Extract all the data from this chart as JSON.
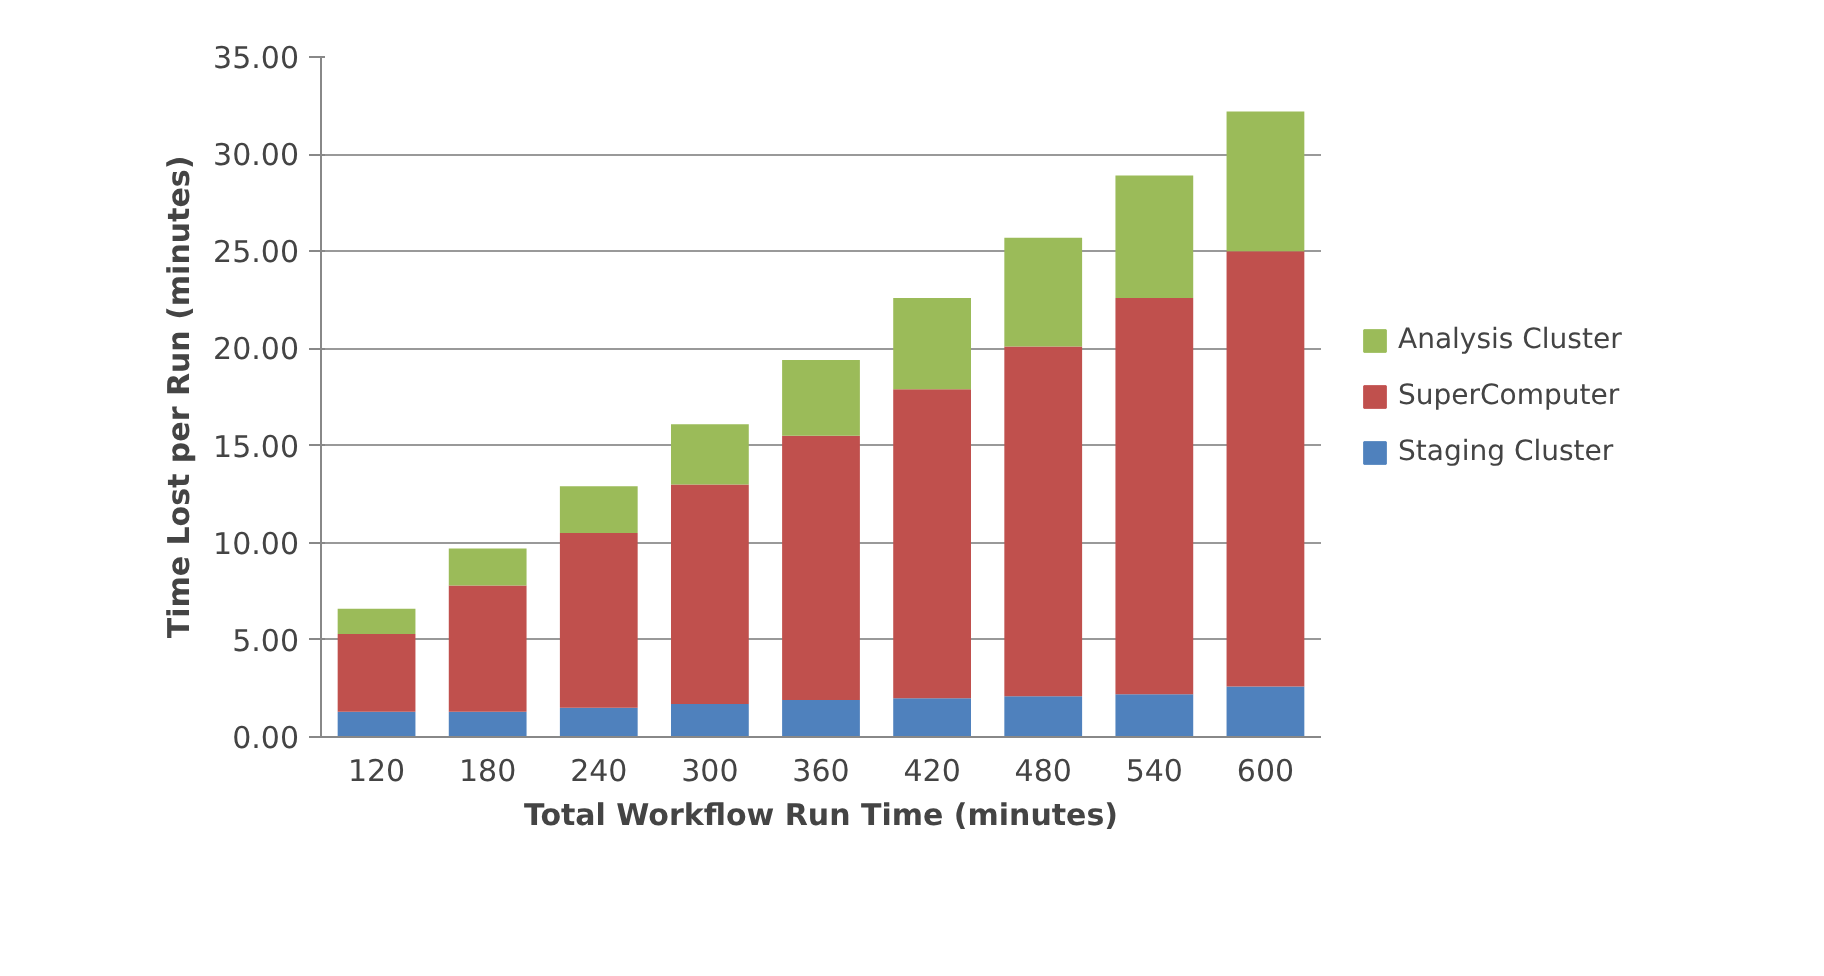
{
  "chart_data": {
    "type": "bar",
    "stacked": true,
    "xlabel": "Total Workflow Run Time (minutes)",
    "ylabel": "Time Lost per Run (minutes)",
    "categories": [
      "120",
      "180",
      "240",
      "300",
      "360",
      "420",
      "480",
      "540",
      "600"
    ],
    "series": [
      {
        "name": "Staging Cluster",
        "color": "#4f81bd",
        "values": [
          1.3,
          1.3,
          1.5,
          1.7,
          1.9,
          2.0,
          2.1,
          2.2,
          2.6
        ]
      },
      {
        "name": "SuperComputer",
        "color": "#c0504d",
        "values": [
          4.0,
          6.5,
          9.0,
          11.3,
          13.6,
          15.9,
          18.0,
          20.4,
          22.4
        ]
      },
      {
        "name": "Analysis Cluster",
        "color": "#9bbb59",
        "values": [
          1.3,
          1.9,
          2.4,
          3.1,
          3.9,
          4.7,
          5.6,
          6.3,
          7.2
        ]
      }
    ],
    "ylim": [
      0,
      35
    ],
    "yticks": [
      {
        "value": 0,
        "label": "0.00"
      },
      {
        "value": 5,
        "label": "5.00"
      },
      {
        "value": 10,
        "label": "10.00"
      },
      {
        "value": 15,
        "label": "15.00"
      },
      {
        "value": 20,
        "label": "20.00"
      },
      {
        "value": 25,
        "label": "25.00"
      },
      {
        "value": 30,
        "label": "30.00"
      },
      {
        "value": 35,
        "label": "35.00"
      }
    ],
    "grid": "y",
    "legend": "right"
  }
}
